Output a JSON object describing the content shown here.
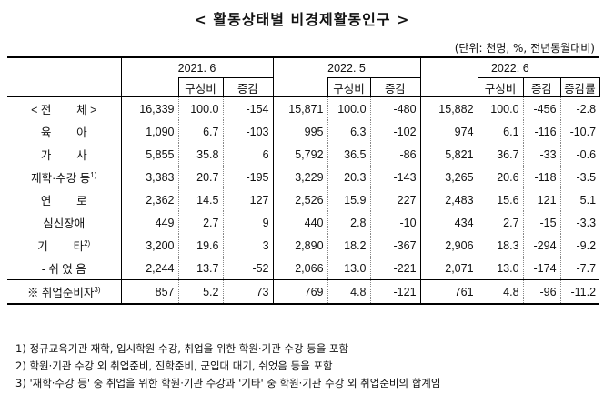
{
  "title": "< 활동상태별 비경제활동인구 >",
  "unit": "(단위: 천명, %, 전년동월대비)",
  "periods": [
    "2021. 6",
    "2022. 5",
    "2022. 6"
  ],
  "subheaders": {
    "share": "구성비",
    "change": "증감",
    "rate": "증감률"
  },
  "rows": [
    {
      "label": "< 전        체 >",
      "sup": "",
      "v": [
        "16,339",
        "100.0",
        "-154",
        "15,871",
        "100.0",
        "-480",
        "15,882",
        "100.0",
        "-456",
        "-2.8"
      ]
    },
    {
      "label": "육        아",
      "sup": "",
      "v": [
        "1,090",
        "6.7",
        "-103",
        "995",
        "6.3",
        "-102",
        "974",
        "6.1",
        "-116",
        "-10.7"
      ]
    },
    {
      "label": "가        사",
      "sup": "",
      "v": [
        "5,855",
        "35.8",
        "6",
        "5,792",
        "36.5",
        "-86",
        "5,821",
        "36.7",
        "-33",
        "-0.6"
      ]
    },
    {
      "label": "재학·수강 등",
      "sup": "1)",
      "v": [
        "3,383",
        "20.7",
        "-195",
        "3,229",
        "20.3",
        "-143",
        "3,265",
        "20.6",
        "-118",
        "-3.5"
      ]
    },
    {
      "label": "연        로",
      "sup": "",
      "v": [
        "2,362",
        "14.5",
        "127",
        "2,526",
        "15.9",
        "227",
        "2,483",
        "15.6",
        "121",
        "5.1"
      ]
    },
    {
      "label": "심신장애",
      "sup": "",
      "v": [
        "449",
        "2.7",
        "9",
        "440",
        "2.8",
        "-10",
        "434",
        "2.7",
        "-15",
        "-3.3"
      ]
    },
    {
      "label": "기        타",
      "sup": "2)",
      "v": [
        "3,200",
        "19.6",
        "3",
        "2,890",
        "18.2",
        "-367",
        "2,906",
        "18.3",
        "-294",
        "-9.2"
      ]
    },
    {
      "label": "- 쉬 었 음",
      "sup": "",
      "v": [
        "2,244",
        "13.7",
        "-52",
        "2,066",
        "13.0",
        "-221",
        "2,071",
        "13.0",
        "-174",
        "-7.7"
      ]
    }
  ],
  "summary": {
    "label": "※ 취업준비자",
    "sup": "3)",
    "v": [
      "857",
      "5.2",
      "73",
      "769",
      "4.8",
      "-121",
      "761",
      "4.8",
      "-96",
      "-11.2"
    ]
  },
  "notes": [
    "1) 정규교육기관 재학, 입시학원 수강, 취업을 위한 학원·기관 수강 등을 포함",
    "2) 학원·기관 수강 외 취업준비, 진학준비, 군입대 대기, 쉬었음 등을 포함",
    "3) '재학·수강 등' 중 취업을 위한 학원·기관 수강과 '기타' 중 학원·기관 수강 외 취업준비의 합계임"
  ]
}
